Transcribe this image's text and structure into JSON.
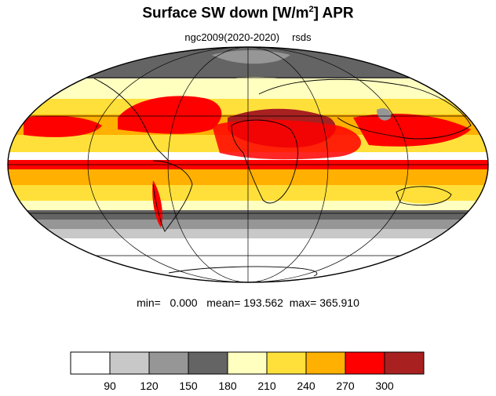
{
  "figure": {
    "title_main": "Surface SW down [W/m",
    "title_sup": "2",
    "title_end": "]  APR",
    "subtitle_case": "ngc2009(2020-2020)",
    "subtitle_var": "rsds"
  },
  "stats": {
    "min_label": "min=",
    "min": "0.000",
    "mean_label": "mean=",
    "mean": "193.562",
    "max_label": "max=",
    "max": "365.910"
  },
  "colorbar": {
    "colors": [
      "#ffffff",
      "#c8c8c8",
      "#969696",
      "#646464",
      "#ffffc0",
      "#ffe03a",
      "#ffb000",
      "#ff0000",
      "#a82020"
    ],
    "tick_labels": [
      "90",
      "120",
      "150",
      "180",
      "210",
      "240",
      "270",
      "300"
    ]
  },
  "map": {
    "projection": "mollweide",
    "ocean_border_color": "#000000",
    "grid": true
  }
}
